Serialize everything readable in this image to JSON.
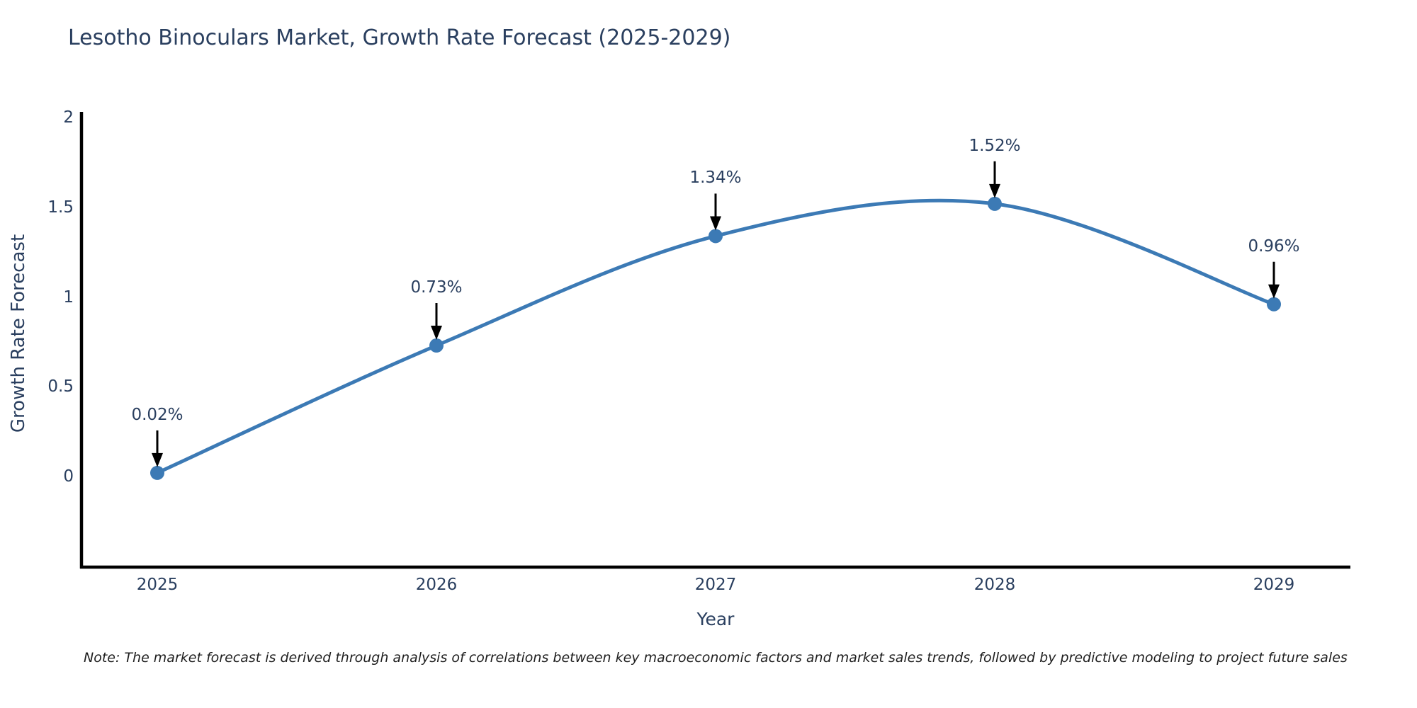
{
  "title": "Lesotho Binoculars Market, Growth Rate Forecast (2025-2029)",
  "note": "Note: The market forecast is derived through analysis of correlations between key macroeconomic factors and market sales trends, followed by predictive modeling to project future sales",
  "chart_data": {
    "type": "line",
    "title": "Lesotho Binoculars Market, Growth Rate Forecast (2025-2029)",
    "x": [
      2025,
      2026,
      2027,
      2028,
      2029
    ],
    "values": [
      0.02,
      0.73,
      1.34,
      1.52,
      0.96
    ],
    "point_labels": [
      "0.02%",
      "0.73%",
      "1.34%",
      "1.52%",
      "0.96%"
    ],
    "series_count": 1,
    "xlabel": "Year",
    "ylabel": "Growth Rate Forecast",
    "x_ticks": [
      "2025",
      "2026",
      "2027",
      "2028",
      "2029"
    ],
    "y_ticks": [
      "0",
      "0.5",
      "1",
      "1.5",
      "2"
    ],
    "y_tick_values": [
      0,
      0.5,
      1,
      1.5,
      2
    ],
    "ylim": [
      -0.5,
      2
    ],
    "line_shape": "spline",
    "grid": false,
    "legend": "none",
    "annotations_have_arrows": true,
    "colors": {
      "line": "#3c7ab5",
      "marker": "#3c7ab5",
      "axis": "#000000",
      "arrow": "#000000",
      "text": "#2a3f5f",
      "background": "#ffffff"
    }
  }
}
